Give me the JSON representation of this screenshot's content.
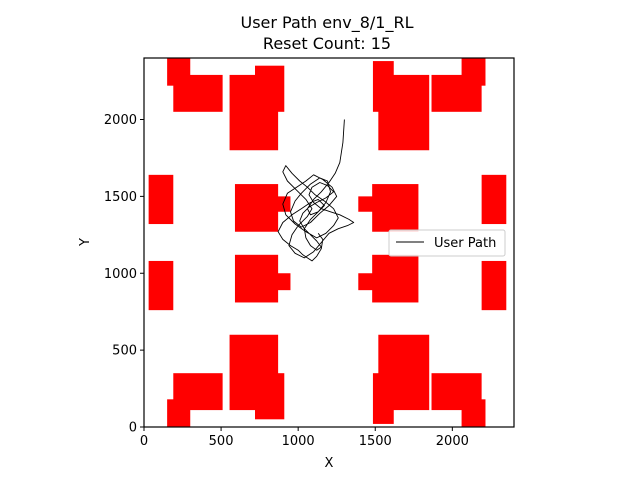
{
  "chart_data": {
    "type": "line",
    "title": "User Path env_8/1_RL",
    "subtitle": "Reset Count: 15",
    "xlabel": "X",
    "ylabel": "Y",
    "xlim": [
      0,
      2400
    ],
    "ylim": [
      0,
      2400
    ],
    "xticks": [
      0,
      500,
      1000,
      1500,
      2000
    ],
    "yticks": [
      0,
      500,
      1000,
      1500,
      2000
    ],
    "grid": false,
    "legend": {
      "placement": "center-right",
      "entries": [
        "User Path"
      ]
    },
    "colors": {
      "obstacle": "#ff0000",
      "path": "#000000",
      "axes": "#000000"
    },
    "obstacles": [
      {
        "x0": 150,
        "x1": 300,
        "y0": 2220,
        "y1": 2400
      },
      {
        "x0": 190,
        "x1": 510,
        "y0": 2050,
        "y1": 2290
      },
      {
        "x0": 555,
        "x1": 870,
        "y0": 1800,
        "y1": 2290
      },
      {
        "x0": 720,
        "x1": 910,
        "y0": 2050,
        "y1": 2350
      },
      {
        "x0": 1485,
        "x1": 1620,
        "y0": 2050,
        "y1": 2380
      },
      {
        "x0": 1520,
        "x1": 1850,
        "y0": 1800,
        "y1": 2290
      },
      {
        "x0": 1865,
        "x1": 2190,
        "y0": 2050,
        "y1": 2290
      },
      {
        "x0": 2060,
        "x1": 2215,
        "y0": 2220,
        "y1": 2400
      },
      {
        "x0": 30,
        "x1": 190,
        "y0": 1320,
        "y1": 1640
      },
      {
        "x0": 590,
        "x1": 870,
        "y0": 1270,
        "y1": 1580
      },
      {
        "x0": 800,
        "x1": 950,
        "y0": 1400,
        "y1": 1500
      },
      {
        "x0": 1390,
        "x1": 1540,
        "y0": 1400,
        "y1": 1500
      },
      {
        "x0": 1480,
        "x1": 1780,
        "y0": 1270,
        "y1": 1580
      },
      {
        "x0": 2190,
        "x1": 2350,
        "y0": 1320,
        "y1": 1640
      },
      {
        "x0": 30,
        "x1": 190,
        "y0": 760,
        "y1": 1080
      },
      {
        "x0": 590,
        "x1": 870,
        "y0": 810,
        "y1": 1120
      },
      {
        "x0": 800,
        "x1": 950,
        "y0": 890,
        "y1": 1000
      },
      {
        "x0": 1390,
        "x1": 1540,
        "y0": 890,
        "y1": 1000
      },
      {
        "x0": 1480,
        "x1": 1780,
        "y0": 810,
        "y1": 1120
      },
      {
        "x0": 2190,
        "x1": 2350,
        "y0": 760,
        "y1": 1080
      },
      {
        "x0": 150,
        "x1": 300,
        "y0": 0,
        "y1": 180
      },
      {
        "x0": 190,
        "x1": 510,
        "y0": 110,
        "y1": 350
      },
      {
        "x0": 555,
        "x1": 870,
        "y0": 110,
        "y1": 600
      },
      {
        "x0": 720,
        "x1": 910,
        "y0": 50,
        "y1": 350
      },
      {
        "x0": 1485,
        "x1": 1620,
        "y0": 20,
        "y1": 350
      },
      {
        "x0": 1520,
        "x1": 1850,
        "y0": 110,
        "y1": 600
      },
      {
        "x0": 1865,
        "x1": 2190,
        "y0": 110,
        "y1": 350
      },
      {
        "x0": 2060,
        "x1": 2215,
        "y0": 0,
        "y1": 180
      }
    ],
    "series": [
      {
        "name": "User Path",
        "x": [
          1300,
          1290,
          1270,
          1240,
          1200,
          1150,
          1100,
          1060,
          1080,
          1130,
          1180,
          1210,
          1190,
          1140,
          1080,
          1020,
          980,
          950,
          970,
          1020,
          1080,
          1140,
          1200,
          1250,
          1220,
          1160,
          1100,
          1050,
          990,
          930,
          900,
          920,
          980,
          1050,
          1120,
          1180,
          1230,
          1260,
          1230,
          1170,
          1110,
          1060,
          1010,
          960,
          920,
          900,
          930,
          990,
          1050,
          1090,
          1060,
          1000,
          960,
          940,
          980,
          1040,
          1100,
          1150,
          1200,
          1260,
          1320,
          1360,
          1330,
          1270,
          1210,
          1150,
          1100,
          1070,
          1090,
          1140,
          1190,
          1230,
          1180,
          1120,
          1070,
          1030,
          1010,
          1040,
          1080,
          1120,
          1150,
          1120,
          1080,
          1050,
          1040,
          1080,
          1130,
          1170,
          1130,
          1080,
          1020,
          960,
          900,
          870,
          900,
          950,
          1000,
          1030,
          1060,
          1090,
          1120,
          1150,
          1160,
          1130
        ],
        "y": [
          2000,
          1850,
          1720,
          1650,
          1590,
          1530,
          1480,
          1420,
          1380,
          1400,
          1460,
          1530,
          1600,
          1620,
          1580,
          1520,
          1470,
          1400,
          1340,
          1300,
          1330,
          1390,
          1440,
          1500,
          1560,
          1610,
          1640,
          1600,
          1560,
          1520,
          1450,
          1380,
          1320,
          1270,
          1230,
          1260,
          1310,
          1360,
          1420,
          1470,
          1510,
          1560,
          1600,
          1650,
          1700,
          1660,
          1600,
          1540,
          1480,
          1420,
          1370,
          1310,
          1250,
          1180,
          1130,
          1100,
          1140,
          1200,
          1260,
          1290,
          1310,
          1330,
          1350,
          1380,
          1400,
          1420,
          1460,
          1510,
          1560,
          1590,
          1570,
          1530,
          1490,
          1460,
          1430,
          1390,
          1340,
          1290,
          1250,
          1210,
          1170,
          1150,
          1180,
          1230,
          1290,
          1350,
          1400,
          1440,
          1480,
          1460,
          1420,
          1380,
          1330,
          1270,
          1220,
          1180,
          1150,
          1120,
          1100,
          1080,
          1110,
          1160,
          1220,
          1260
        ]
      }
    ]
  }
}
